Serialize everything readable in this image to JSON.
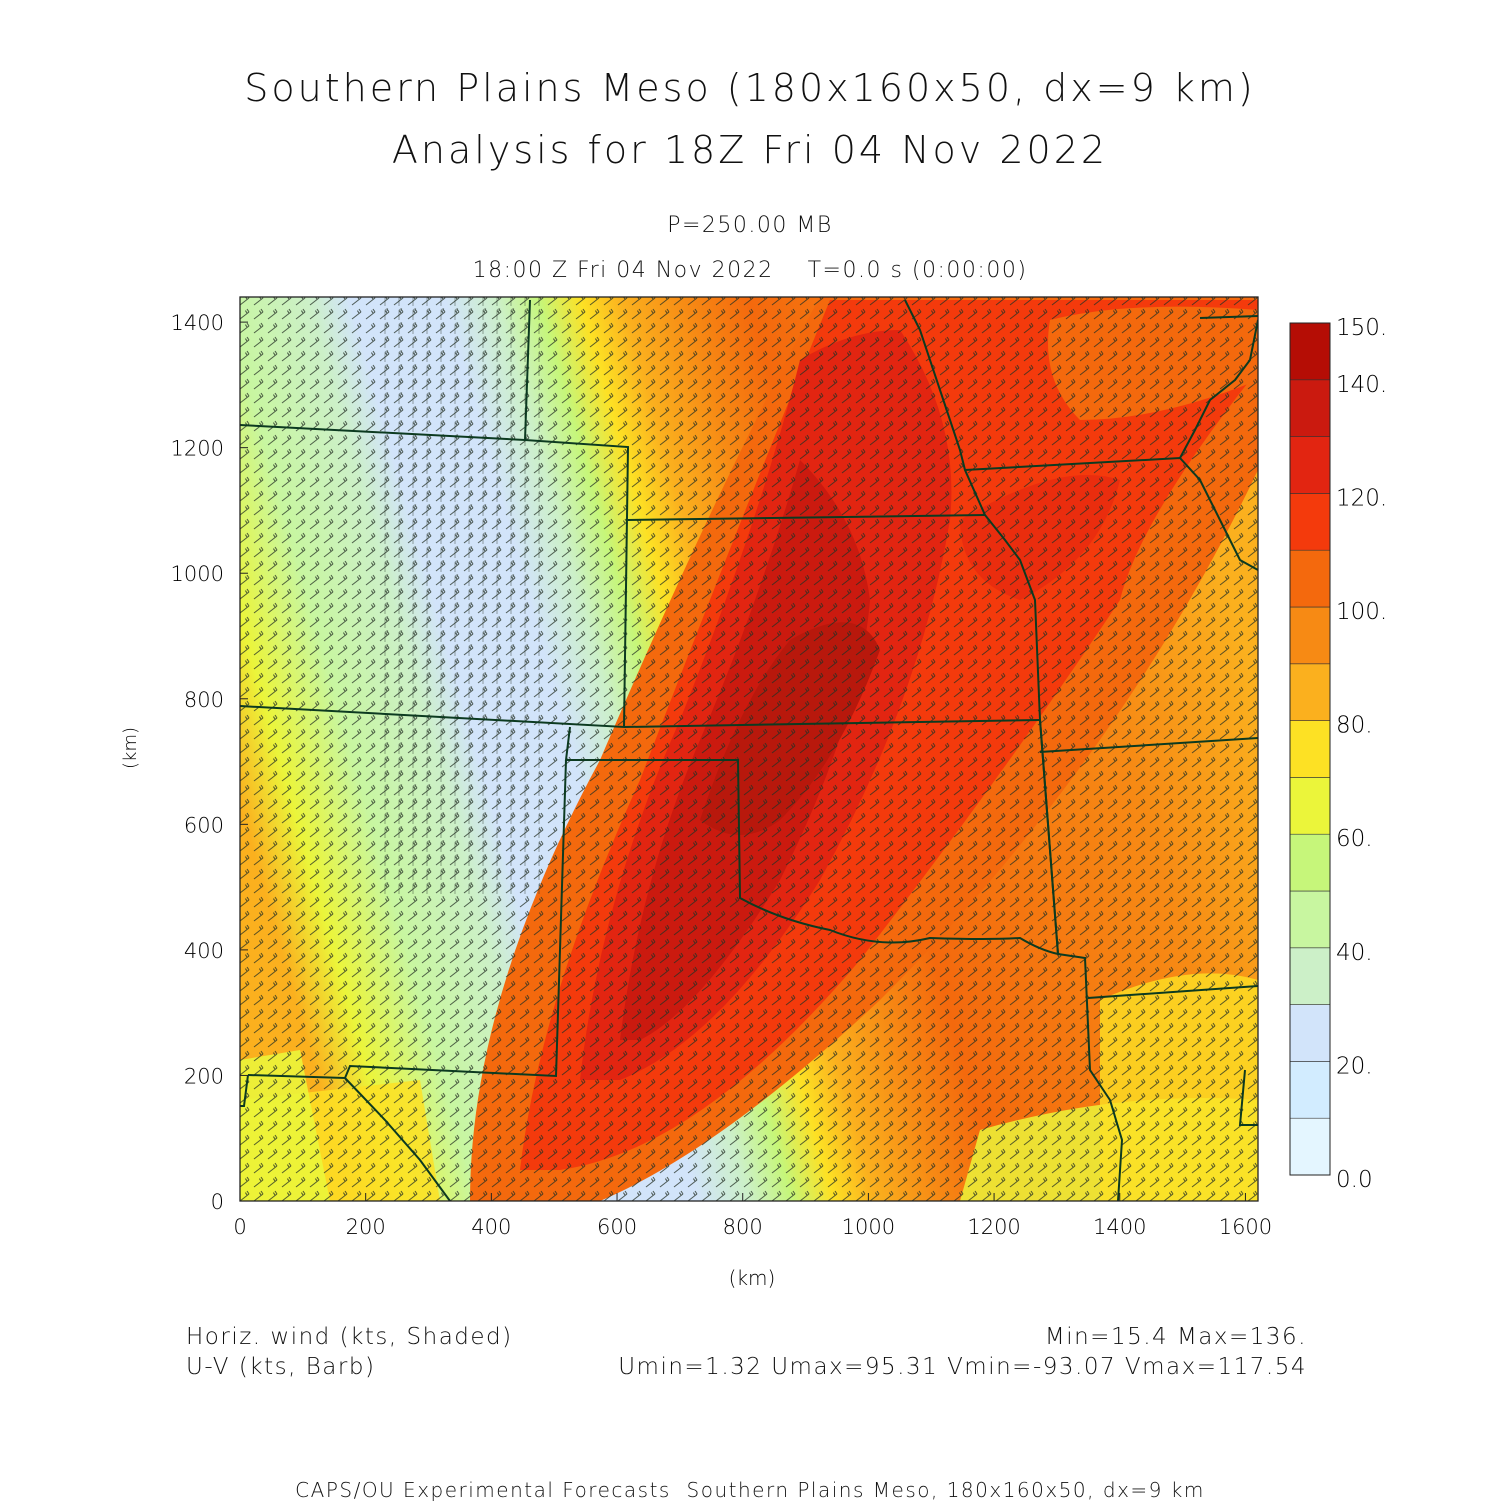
{
  "title": {
    "line1": "Southern Plains Meso (180x160x50, dx=9 km)",
    "line2": "Analysis for 18Z Fri 04 Nov 2022"
  },
  "subtitle": {
    "pressure": "P=250.00 MB",
    "time": "18:00 Z Fri 04 Nov 2022    T=0.0 s (0:00:00)"
  },
  "axes": {
    "x_label": "(km)",
    "y_label": "(km)",
    "x_ticks": [
      "0",
      "200",
      "400",
      "600",
      "800",
      "1000",
      "1200",
      "1400",
      "1600"
    ],
    "y_ticks": [
      "0",
      "200",
      "400",
      "600",
      "800",
      "1000",
      "1200",
      "1400"
    ],
    "x_range_km": [
      0,
      1620
    ],
    "y_range_km": [
      0,
      1440
    ]
  },
  "colorbar": {
    "labels": [
      "150.",
      "140.",
      "120.",
      "100.",
      "80.",
      "60.",
      "40.",
      "20.",
      "0.0"
    ],
    "levels": [
      0,
      10,
      20,
      30,
      40,
      50,
      60,
      70,
      80,
      90,
      100,
      110,
      120,
      130,
      140,
      150
    ],
    "colors": [
      "#e4f6ff",
      "#d2ecff",
      "#d2e4fa",
      "#ccf0c8",
      "#c8f6a0",
      "#c6f67a",
      "#ebf53a",
      "#fde124",
      "#fbb01e",
      "#f78a14",
      "#f4690d",
      "#f43a0c",
      "#e22511",
      "#cb1a0f",
      "#b50d05"
    ]
  },
  "map": {
    "field": "Horizontal wind speed at 250 mb (kts)",
    "jet_max_color": "#c61f0c",
    "state_border_color": "#0c3a20",
    "barb_color": "#243024"
  },
  "footer": {
    "shaded_label": "Horiz. wind (kts, Shaded)",
    "barb_label": "U-V (kts, Barb)",
    "minmax": "Min=15.4 Max=136.",
    "uv_stats": "Umin=1.32 Umax=95.31 Vmin=-93.07 Vmax=117.54",
    "credit": "CAPS/OU Experimental Forecasts  Southern Plains Meso, 180x160x50, dx=9 km"
  }
}
